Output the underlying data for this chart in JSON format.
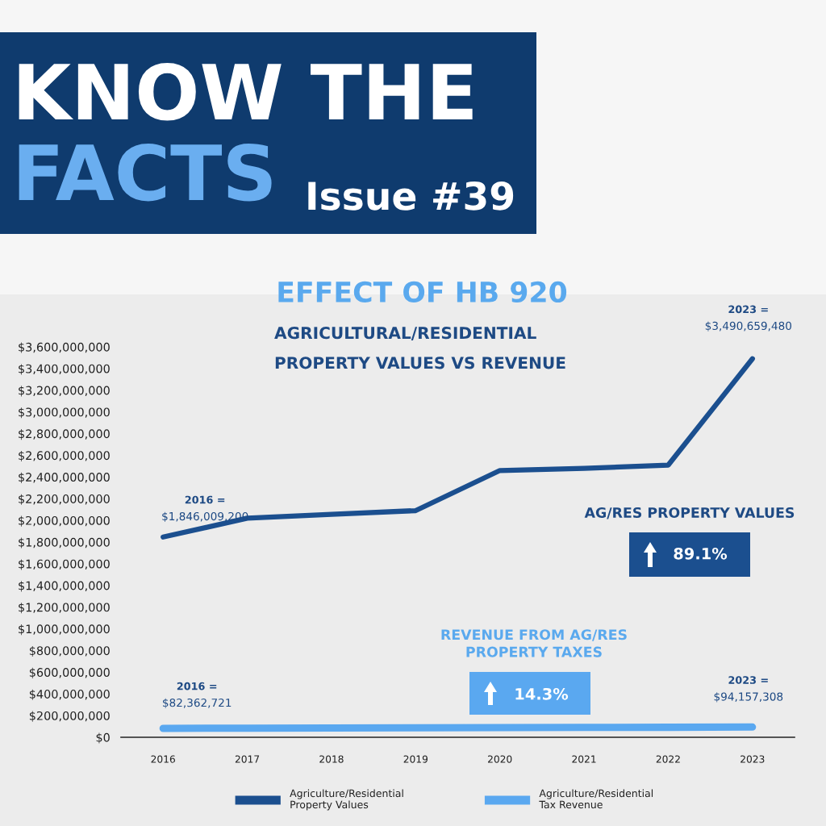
{
  "chart_data": {
    "type": "line",
    "title": "EFFECT OF HB 920",
    "subtitle": "AGRICULTURAL/RESIDENTIAL\nPROPERTY VALUES VS REVENUE",
    "annotations": [
      "KNOW THE",
      "FACTS",
      "Issue #39",
      {
        "text": "2016 =\n$1,846,009,200",
        "x": "2016",
        "y": 1846009200
      },
      {
        "text": "2023 =\n$3,490,659,480",
        "x": "2023",
        "y": 3490659480
      },
      {
        "text": "2016 =\n$82,362,721",
        "x": "2016",
        "y": 82362721
      },
      {
        "text": "2023 =\n$94,157,308",
        "x": "2023",
        "y": 94157308
      },
      "AG/RES PROPERTY VALUES",
      "89.1%",
      "REVENUE FROM AG/RES\nPROPERTY TAXES",
      "14.3%"
    ],
    "categories": [
      "2016",
      "2017",
      "2018",
      "2019",
      "2020",
      "2021",
      "2022",
      "2023"
    ],
    "series": [
      {
        "name": "Agriculture/Residential\nProperty Values",
        "color": "#1b4f8f",
        "values": [
          1846009200,
          2020000000,
          2055000000,
          2090000000,
          2460000000,
          2480000000,
          2510000000,
          3490659480
        ]
      },
      {
        "name": "Agriculture/Residential\nTax Revenue",
        "color": "#5aa8f0",
        "values": [
          82362721,
          84000000,
          86000000,
          87000000,
          89000000,
          91000000,
          92000000,
          94157308
        ]
      }
    ],
    "ylim": [
      0,
      3600000000
    ],
    "yticks": [
      {
        "value": 0,
        "label": "$0"
      },
      {
        "value": 200000000,
        "label": "$200,000,000"
      },
      {
        "value": 400000000,
        "label": "$400,000,000"
      },
      {
        "value": 600000000,
        "label": "$600,000,000"
      },
      {
        "value": 800000000,
        "label": "$800,000,000"
      },
      {
        "value": 1000000000,
        "label": "$1,000,000,000"
      },
      {
        "value": 1200000000,
        "label": "$1,200,000,000"
      },
      {
        "value": 1400000000,
        "label": "$1,400,000,000"
      },
      {
        "value": 1600000000,
        "label": "$1,600,000,000"
      },
      {
        "value": 1800000000,
        "label": "$1,800,000,000"
      },
      {
        "value": 2000000000,
        "label": "$2,000,000,000"
      },
      {
        "value": 2200000000,
        "label": "$2,200,000,000"
      },
      {
        "value": 2400000000,
        "label": "$2,400,000,000"
      },
      {
        "value": 2600000000,
        "label": "$2,600,000,000"
      },
      {
        "value": 2800000000,
        "label": "$2,800,000,000"
      },
      {
        "value": 3000000000,
        "label": "$3,000,000,000"
      },
      {
        "value": 3200000000,
        "label": "$3,200,000,000"
      },
      {
        "value": 3400000000,
        "label": "$3,400,000,000"
      },
      {
        "value": 3600000000,
        "label": "$3,600,000,000"
      }
    ],
    "legend": "bottom",
    "grid": false
  }
}
